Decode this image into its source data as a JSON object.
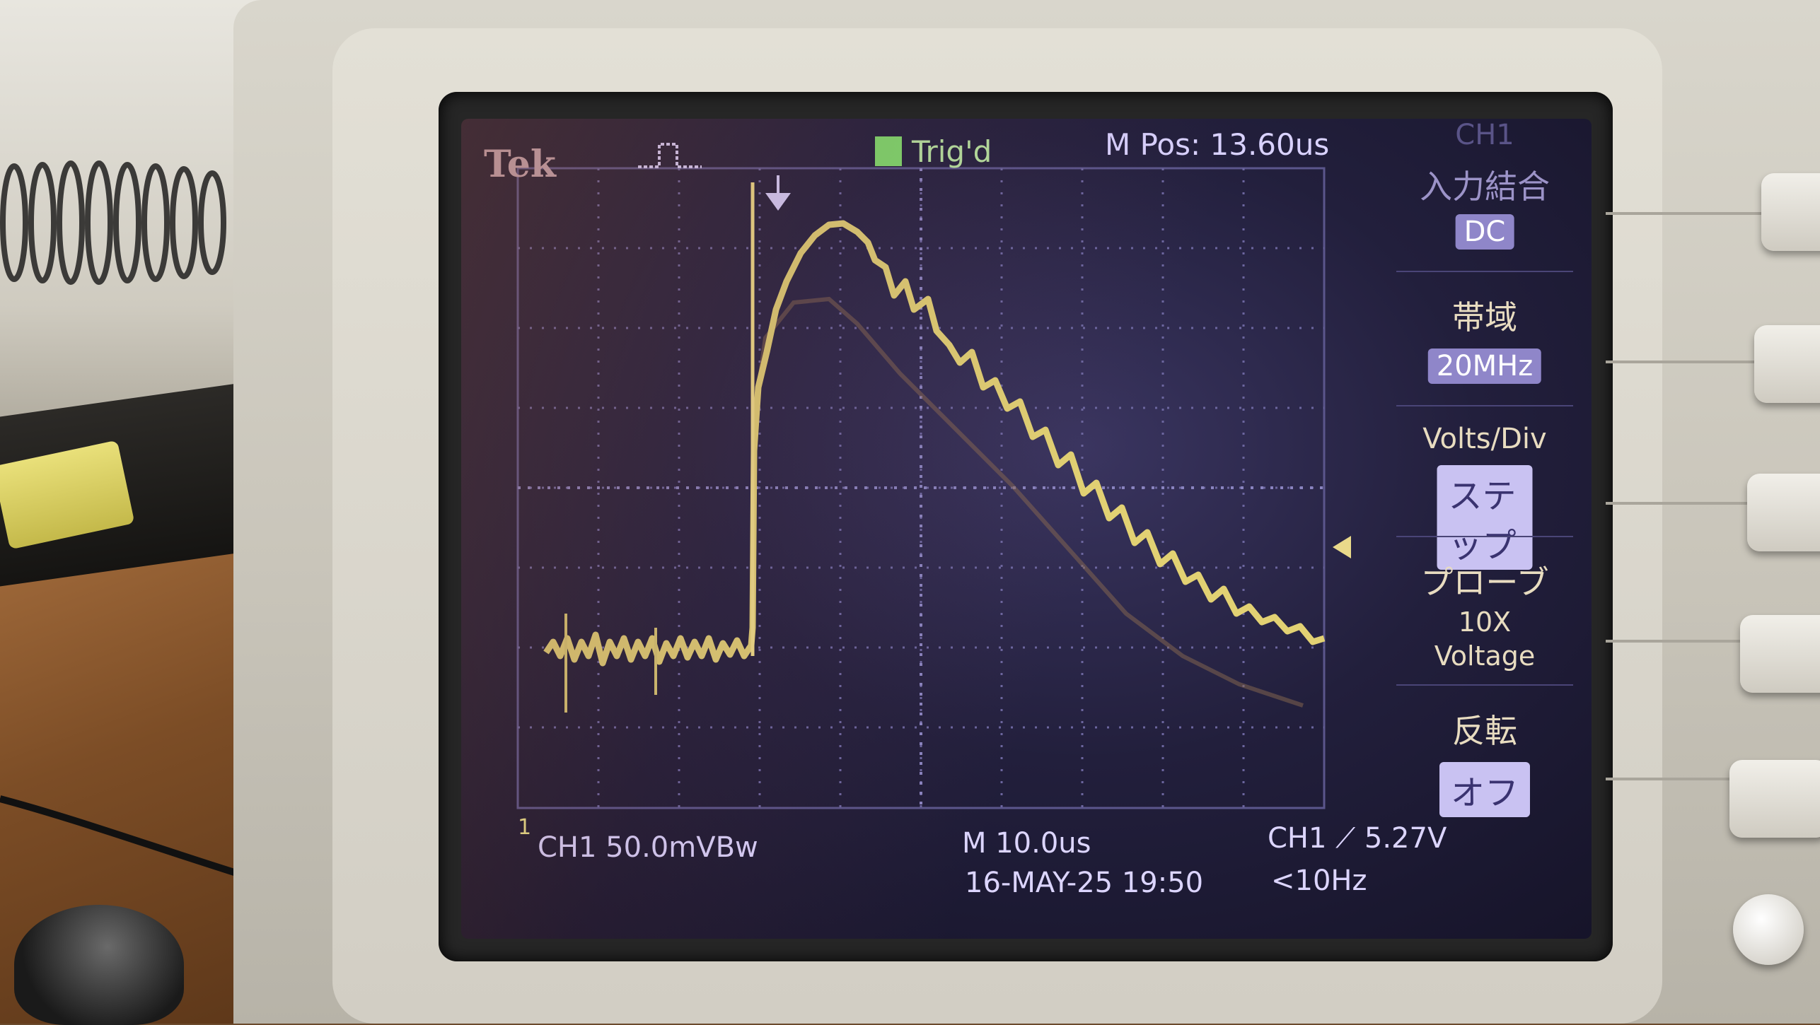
{
  "screen": {
    "brand": "Tek",
    "trigger_status": "Trig'd",
    "horizontal_position": "M Pos: 13.60us",
    "menu_channel": "CH1",
    "channel_marker": "1",
    "ch1_scale": "CH1  50.0mVBw",
    "timebase": "M 10.0us",
    "datetime": "16-MAY-25 19:50",
    "trigger_level": "CH1 ⟋ 5.27V",
    "trigger_frequency": "<10Hz"
  },
  "menu": {
    "coupling": {
      "label": "入力結合",
      "value": "DC"
    },
    "bandwidth": {
      "label": "帯域",
      "value": "20MHz"
    },
    "volts_div": {
      "label": "Volts/Div",
      "value": "ステップ"
    },
    "probe": {
      "label": "プローブ",
      "value_line1": "10X",
      "value_line2": "Voltage"
    },
    "invert": {
      "label": "反転",
      "value": "オフ"
    }
  },
  "colors": {
    "trace": "#e2d173",
    "screen_bg": "#221f3c",
    "text": "#dcd5ff",
    "trig_indicator": "#7fdc6b"
  }
}
